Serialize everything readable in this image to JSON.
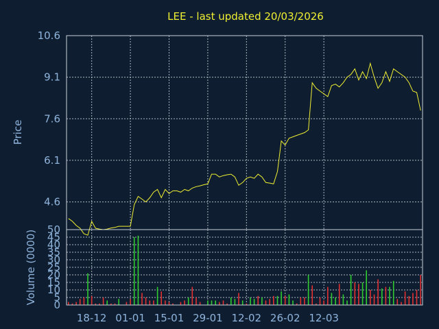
{
  "chart_data": [
    {
      "type": "line",
      "title": "LEE - last updated 20/03/2026",
      "ylabel": "Price",
      "ylim": [
        3.6,
        10.6
      ],
      "yticks": [
        "4.6",
        "6.1",
        "7.6",
        "9.1",
        "10.6"
      ],
      "ytick_values": [
        4.6,
        6.1,
        7.6,
        9.1,
        10.6
      ],
      "xlabels": [
        "18-12",
        "01-01",
        "15-01",
        "29-01",
        "12-02",
        "26-02",
        "12-03"
      ],
      "xlabel_index": [
        6,
        16,
        26,
        36,
        46,
        56,
        66
      ],
      "grid": true,
      "line_color": "#f0f032",
      "series": [
        {
          "values": [
            4.0,
            3.9,
            3.75,
            3.65,
            3.45,
            3.4,
            3.9,
            3.65,
            3.62,
            3.6,
            3.62,
            3.66,
            3.68,
            3.72,
            3.72,
            3.72,
            3.72,
            4.5,
            4.8,
            4.7,
            4.6,
            4.75,
            4.95,
            5.05,
            4.75,
            5.05,
            4.9,
            5.0,
            5.0,
            4.95,
            5.05,
            5.0,
            5.1,
            5.15,
            5.18,
            5.22,
            5.25,
            5.6,
            5.6,
            5.5,
            5.55,
            5.58,
            5.6,
            5.5,
            5.2,
            5.3,
            5.45,
            5.5,
            5.45,
            5.6,
            5.5,
            5.3,
            5.28,
            5.25,
            5.7,
            6.8,
            6.65,
            6.9,
            6.95,
            7.0,
            7.05,
            7.1,
            7.2,
            8.9,
            8.7,
            8.6,
            8.5,
            8.4,
            8.8,
            8.85,
            8.75,
            8.9,
            9.1,
            9.2,
            9.4,
            9.0,
            9.3,
            9.05,
            9.6,
            9.1,
            8.7,
            8.9,
            9.3,
            8.95,
            9.4,
            9.3,
            9.2,
            9.1,
            8.9,
            8.6,
            8.55,
            7.9
          ]
        }
      ]
    },
    {
      "type": "bar",
      "ylabel": "Volume (0000)",
      "ylim": [
        0,
        50
      ],
      "yticks": [
        "0",
        "5",
        "10",
        "15",
        "20",
        "25",
        "30",
        "35",
        "40",
        "45",
        "50"
      ],
      "ytick_values": [
        0,
        5,
        10,
        15,
        20,
        25,
        30,
        35,
        40,
        45,
        50
      ],
      "up_color": "#2ecc2e",
      "down_color": "#e03030",
      "values": [
        2,
        1,
        2,
        4,
        5,
        21,
        6,
        1,
        1,
        5,
        3,
        1,
        1,
        4,
        0,
        2,
        4,
        45,
        46,
        8,
        5,
        3,
        3,
        12,
        9,
        3,
        2,
        1,
        0,
        2,
        3,
        5,
        12,
        5,
        2,
        0,
        3,
        3,
        3,
        2,
        3,
        1,
        5,
        4,
        8,
        3,
        1,
        5,
        4,
        6,
        5,
        3,
        4,
        6,
        6,
        9,
        6,
        7,
        3,
        1,
        5,
        5,
        20,
        13,
        1,
        5,
        3,
        12,
        8,
        5,
        14,
        7,
        3,
        20,
        15,
        14,
        15,
        23,
        10,
        7,
        17,
        11,
        12,
        12,
        16,
        4,
        2,
        9,
        6,
        8,
        10,
        20
      ],
      "up": [
        false,
        false,
        false,
        false,
        false,
        true,
        false,
        false,
        false,
        false,
        true,
        false,
        false,
        true,
        false,
        false,
        false,
        true,
        true,
        false,
        false,
        false,
        false,
        true,
        false,
        false,
        false,
        false,
        false,
        false,
        false,
        true,
        false,
        false,
        false,
        false,
        true,
        true,
        true,
        false,
        false,
        false,
        true,
        true,
        false,
        true,
        false,
        true,
        true,
        false,
        true,
        false,
        false,
        false,
        true,
        true,
        false,
        true,
        true,
        false,
        false,
        false,
        true,
        false,
        false,
        false,
        false,
        false,
        true,
        true,
        false,
        true,
        true,
        true,
        false,
        false,
        true,
        true,
        false,
        false,
        false,
        true,
        false,
        true,
        true,
        false,
        false,
        false,
        false,
        false,
        false,
        false
      ]
    }
  ]
}
